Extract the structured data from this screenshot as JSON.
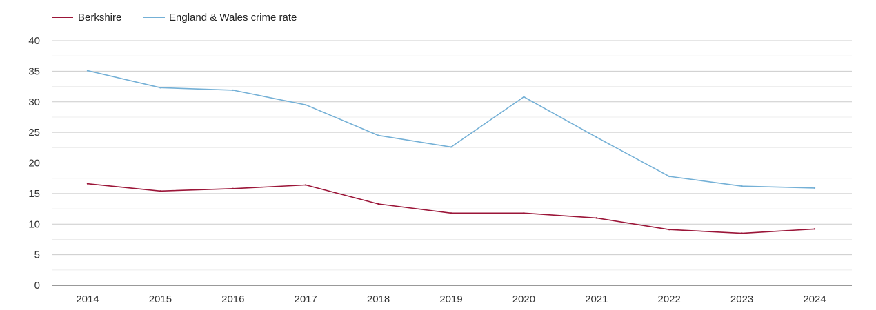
{
  "chart_data": {
    "type": "line",
    "title": "",
    "xlabel": "",
    "ylabel": "",
    "ylim": [
      0,
      40
    ],
    "yticks": [
      0,
      5,
      10,
      15,
      20,
      25,
      30,
      35,
      40
    ],
    "grid": true,
    "legend_position": "top-left",
    "categories": [
      "2014",
      "2015",
      "2016",
      "2017",
      "2018",
      "2019",
      "2020",
      "2021",
      "2022",
      "2023",
      "2024"
    ],
    "series": [
      {
        "name": "Berkshire",
        "color": "#9b1538",
        "values": [
          16.6,
          15.4,
          15.8,
          16.4,
          13.3,
          11.8,
          11.8,
          11.0,
          9.1,
          8.5,
          9.2
        ]
      },
      {
        "name": "England & Wales crime rate",
        "color": "#74b0d6",
        "values": [
          35.1,
          32.3,
          31.9,
          29.5,
          24.5,
          22.6,
          30.8,
          24.2,
          17.8,
          16.2,
          15.9
        ]
      }
    ]
  }
}
